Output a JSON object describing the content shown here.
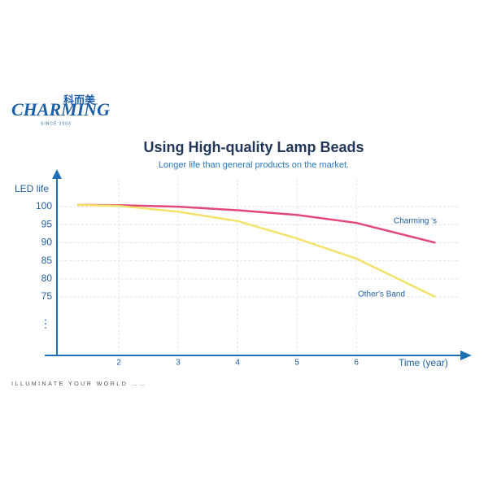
{
  "logo": {
    "chinese": "科而美",
    "brand": "CHARMING",
    "since": "SINCE 2003"
  },
  "footer": "ILLUMINATE YOUR WORLD ……",
  "chart_data": {
    "type": "line",
    "title": "Using High-quality Lamp Beads",
    "subtitle": "Longer life than general products on the market.",
    "y_label": "LED life",
    "x_label": "Time (year)",
    "y_break": "⋮",
    "x": [
      1.3,
      2,
      3,
      4,
      5,
      6,
      7.33
    ],
    "series": [
      {
        "name": "Charming 's",
        "color": "#e2487a",
        "values": [
          100.5,
          100.4,
          100,
          99,
          97.7,
          95.5,
          90
        ]
      },
      {
        "name": "Other's Band",
        "color": "#f3e36b",
        "values": [
          100.5,
          100.2,
          98.6,
          96,
          91.2,
          85.6,
          75
        ]
      }
    ],
    "xlim": [
      1,
      7.9
    ],
    "xticks": [
      2,
      3,
      4,
      5,
      6
    ],
    "ylim": [
      58.8,
      108.8
    ],
    "yticks": [
      75,
      80,
      85,
      90,
      95,
      100
    ],
    "grid": true
  }
}
